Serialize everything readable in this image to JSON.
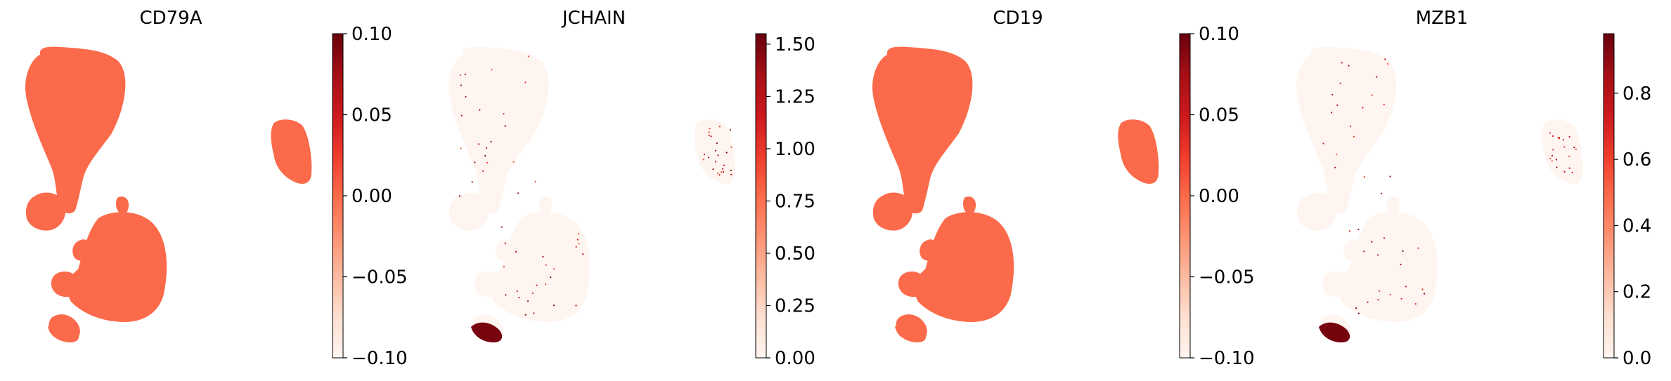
{
  "colormap": "Reds",
  "colors": {
    "low": "#fff5f0",
    "mid": "#fb6a4a",
    "high": "#67000d"
  },
  "chart_data": [
    {
      "type": "scatter",
      "subtype": "umap-embedding",
      "title": "CD79A",
      "colorbar": {
        "min": -0.1,
        "max": 0.1,
        "ticks": [
          "0.10",
          "0.05",
          "0.00",
          "−0.05",
          "−0.10"
        ],
        "tick_values": [
          0.1,
          0.05,
          0.0,
          -0.05,
          -0.1
        ]
      },
      "uniform_value": 0.0,
      "hotspot_fraction": 0.0,
      "plasma_cluster_value": 0.0
    },
    {
      "type": "scatter",
      "subtype": "umap-embedding",
      "title": "JCHAIN",
      "colorbar": {
        "min": 0.0,
        "max": 1.55,
        "ticks": [
          "1.50",
          "1.25",
          "1.00",
          "0.75",
          "0.50",
          "0.25",
          "0.00"
        ],
        "tick_values": [
          1.5,
          1.25,
          1.0,
          0.75,
          0.5,
          0.25,
          0.0
        ]
      },
      "uniform_value": 0.0,
      "hotspot_fraction": 0.006,
      "plasma_cluster_value": 1.5
    },
    {
      "type": "scatter",
      "subtype": "umap-embedding",
      "title": "CD19",
      "colorbar": {
        "min": -0.1,
        "max": 0.1,
        "ticks": [
          "0.10",
          "0.05",
          "0.00",
          "−0.05",
          "−0.10"
        ],
        "tick_values": [
          0.1,
          0.05,
          0.0,
          -0.05,
          -0.1
        ]
      },
      "uniform_value": 0.0,
      "hotspot_fraction": 0.0,
      "plasma_cluster_value": 0.0
    },
    {
      "type": "scatter",
      "subtype": "umap-embedding",
      "title": "MZB1",
      "colorbar": {
        "min": 0.0,
        "max": 0.98,
        "ticks": [
          "0.8",
          "0.6",
          "0.4",
          "0.2",
          "0.0"
        ],
        "tick_values": [
          0.8,
          0.6,
          0.4,
          0.2,
          0.0
        ]
      },
      "uniform_value": 0.0,
      "hotspot_fraction": 0.005,
      "plasma_cluster_value": 0.95
    }
  ]
}
